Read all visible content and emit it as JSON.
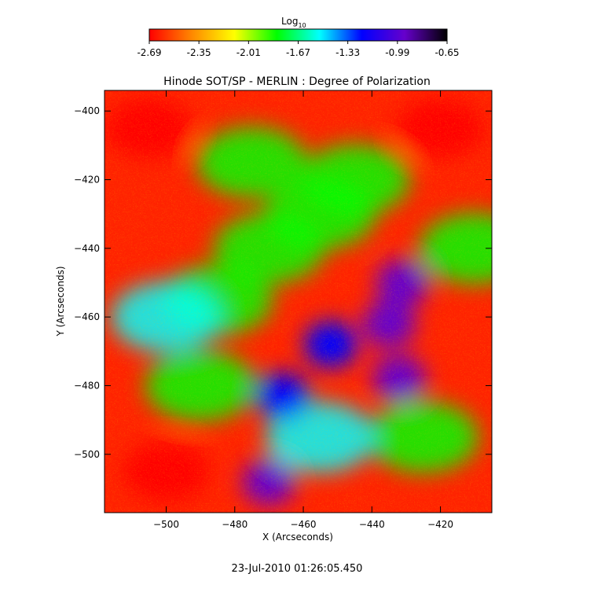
{
  "chart_data": {
    "type": "heatmap",
    "title": "Hinode SOT/SP - MERLIN : Degree of Polarization",
    "xlabel": "X (Arcseconds)",
    "ylabel": "Y (Arcseconds)",
    "xlim": [
      -518,
      -405
    ],
    "ylim": [
      -517,
      -394
    ],
    "x_ticks": [
      -500,
      -480,
      -460,
      -440,
      -420
    ],
    "y_ticks": [
      -400,
      -420,
      -440,
      -460,
      -480,
      -500
    ],
    "colorbar": {
      "label": "Log",
      "label_subscript": "10",
      "range": [
        -2.69,
        -0.65
      ],
      "ticks": [
        "-2.69",
        "-2.35",
        "-2.01",
        "-1.67",
        "-1.33",
        "-0.99",
        "-0.65"
      ],
      "colors": [
        "#ff0000",
        "#ff8800",
        "#ffff00",
        "#00ff00",
        "#00ffff",
        "#0000ff",
        "#6600cc",
        "#000000"
      ]
    },
    "features": [
      {
        "name": "strong polarization region",
        "x": -470,
        "y": -508,
        "log_value": -0.9
      },
      {
        "name": "strong polarization region",
        "x": -431,
        "y": -450,
        "log_value": -0.85
      },
      {
        "name": "strong polarization region",
        "x": -435,
        "y": -462,
        "log_value": -1.0
      },
      {
        "name": "strong polarization region",
        "x": -432,
        "y": -478,
        "log_value": -1.0
      },
      {
        "name": "strong polarization region",
        "x": -466,
        "y": -483,
        "log_value": -1.1
      },
      {
        "name": "strong polarization region",
        "x": -452,
        "y": -468,
        "log_value": -1.1
      },
      {
        "name": "quiet region",
        "x": -505,
        "y": -405,
        "log_value": -2.6
      },
      {
        "name": "quiet region",
        "x": -420,
        "y": -405,
        "log_value": -2.6
      },
      {
        "name": "quiet region",
        "x": -500,
        "y": -505,
        "log_value": -2.6
      }
    ]
  },
  "timestamp": "23-Jul-2010 01:26:05.450"
}
